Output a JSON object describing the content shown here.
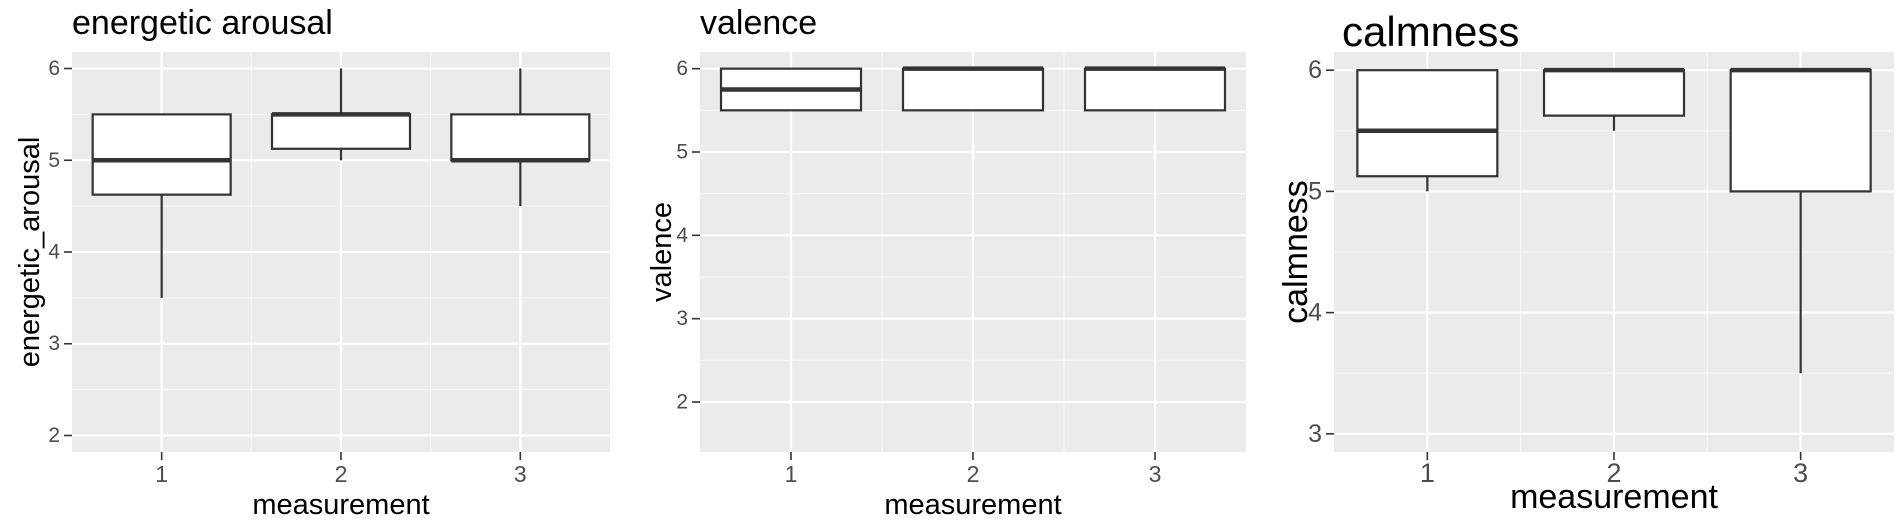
{
  "chart_data": [
    {
      "type": "box",
      "title": "energetic arousal",
      "xlabel": "measurement",
      "ylabel": "energetic_arousal",
      "categories": [
        "1",
        "2",
        "3"
      ],
      "ylim": [
        1.82,
        6.18
      ],
      "yticks": [
        2,
        3,
        4,
        5,
        6
      ],
      "boxes": [
        {
          "min": 3.5,
          "q1": 4.625,
          "median": 5.0,
          "q3": 5.5,
          "max": 5.5
        },
        {
          "min": 5.0,
          "q1": 5.125,
          "median": 5.5,
          "q3": 5.5,
          "max": 6.0
        },
        {
          "min": 4.5,
          "q1": 5.0,
          "median": 5.0,
          "q3": 5.5,
          "max": 6.0
        }
      ],
      "grid": true
    },
    {
      "type": "box",
      "title": "valence",
      "xlabel": "measurement",
      "ylabel": "valence",
      "categories": [
        "1",
        "2",
        "3"
      ],
      "ylim": [
        1.4,
        6.2
      ],
      "yticks": [
        2,
        3,
        4,
        5,
        6
      ],
      "boxes": [
        {
          "min": 5.5,
          "q1": 5.5,
          "median": 5.75,
          "q3": 6.0,
          "max": 6.0
        },
        {
          "min": 5.5,
          "q1": 5.5,
          "median": 6.0,
          "q3": 6.0,
          "max": 6.0
        },
        {
          "min": 5.5,
          "q1": 5.5,
          "median": 6.0,
          "q3": 6.0,
          "max": 6.0
        }
      ],
      "grid": true
    },
    {
      "type": "box",
      "title": "calmness",
      "xlabel": "measurement",
      "ylabel": "calmness",
      "categories": [
        "1",
        "2",
        "3"
      ],
      "ylim": [
        2.85,
        6.15
      ],
      "yticks": [
        3,
        4,
        5,
        6
      ],
      "boxes": [
        {
          "min": 5.0,
          "q1": 5.125,
          "median": 5.5,
          "q3": 6.0,
          "max": 6.0
        },
        {
          "min": 5.5,
          "q1": 5.625,
          "median": 6.0,
          "q3": 6.0,
          "max": 6.0
        },
        {
          "min": 3.5,
          "q1": 5.0,
          "median": 6.0,
          "q3": 6.0,
          "max": 6.0
        }
      ],
      "grid": true
    }
  ]
}
